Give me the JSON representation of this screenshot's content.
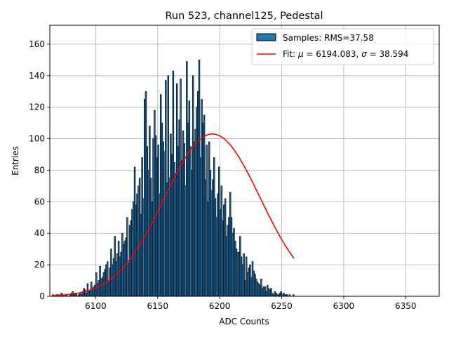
{
  "chart_data": {
    "type": "bar",
    "title": "Run 523, channel125, Pedestal",
    "xlabel": "ADC Counts",
    "ylabel": "Entries",
    "xlim": [
      6063,
      6377
    ],
    "ylim": [
      0,
      172
    ],
    "xticks": [
      6100,
      6150,
      6200,
      6250,
      6300,
      6350
    ],
    "yticks": [
      0,
      20,
      40,
      60,
      80,
      100,
      120,
      140,
      160
    ],
    "grid": true,
    "legend_position": "top-right",
    "bin_width": 1,
    "colors": {
      "bar_fill": "#1f77b4",
      "bar_edge": "#000000",
      "fit_line": "#ff0000"
    },
    "series": [
      {
        "name": "Samples: RMS=37.58",
        "kind": "histogram",
        "x_start": 6065,
        "values": [
          1,
          0,
          0,
          1,
          1,
          0,
          1,
          2,
          1,
          0,
          1,
          1,
          0,
          0,
          1,
          2,
          3,
          1,
          2,
          2,
          0,
          1,
          2,
          1,
          3,
          5,
          4,
          2,
          8,
          3,
          4,
          9,
          5,
          6,
          7,
          15,
          8,
          10,
          19,
          11,
          12,
          15,
          17,
          20,
          22,
          9,
          18,
          30,
          20,
          24,
          38,
          22,
          27,
          35,
          25,
          28,
          40,
          33,
          35,
          37,
          50,
          21,
          45,
          48,
          55,
          60,
          82,
          58,
          65,
          70,
          75,
          52,
          88,
          62,
          125,
          130,
          95,
          80,
          108,
          75,
          60,
          100,
          118,
          102,
          88,
          96,
          65,
          128,
          110,
          98,
          92,
          137,
          72,
          140,
          75,
          103,
          90,
          143,
          85,
          78,
          135,
          95,
          112,
          138,
          86,
          105,
          97,
          70,
          149,
          110,
          124,
          95,
          80,
          140,
          98,
          106,
          120,
          130,
          150,
          88,
          125,
          110,
          115,
          74,
          96,
          60,
          98,
          80,
          67,
          74,
          88,
          62,
          50,
          65,
          82,
          55,
          70,
          48,
          58,
          62,
          38,
          45,
          50,
          66,
          50,
          40,
          43,
          35,
          30,
          28,
          28,
          38,
          25,
          20,
          27,
          10,
          25,
          15,
          18,
          20,
          12,
          22,
          16,
          14,
          11,
          9,
          8,
          7,
          11,
          5,
          6,
          6,
          3,
          7,
          5,
          4,
          5,
          2,
          1,
          3,
          2,
          1,
          1,
          2,
          3,
          1,
          2,
          1,
          1,
          1,
          0,
          1,
          0,
          0,
          1
        ]
      },
      {
        "name": "Fit: μ = 6194.083, σ = 38.594",
        "kind": "gaussian_fit",
        "mu": 6194.083,
        "sigma": 38.594,
        "amplitude": 103
      }
    ],
    "legend": [
      {
        "type": "patch",
        "label": "Samples: RMS=",
        "value": "37.58"
      },
      {
        "type": "line",
        "label_prefix": "Fit: ",
        "mu_symbol": "μ",
        "mu_text": " = 6194.083, ",
        "sigma_symbol": "σ",
        "sigma_text": " = 38.594"
      }
    ]
  }
}
